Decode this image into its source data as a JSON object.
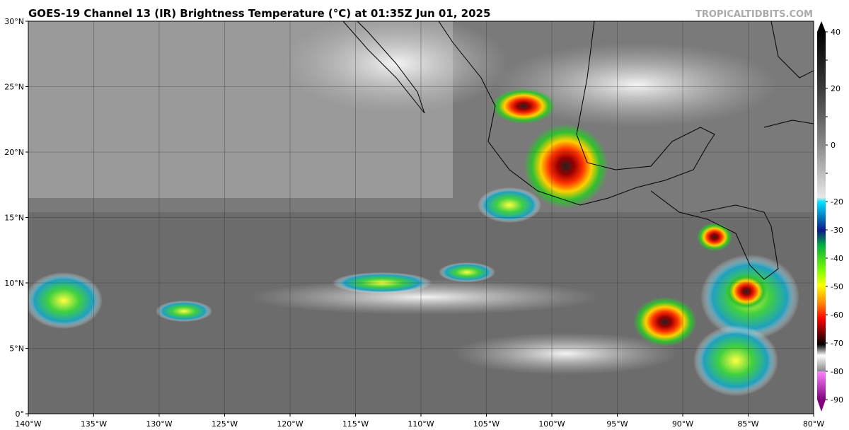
{
  "title": "GOES-19 Channel 13 (IR) Brightness Temperature (°C) at 01:35Z Jun 01, 2025",
  "site": "TROPICALTIDBITS.COM",
  "map": {
    "lat_labels": [
      "0°",
      "5°N",
      "10°N",
      "15°N",
      "20°N",
      "25°N",
      "30°N"
    ],
    "lon_labels": [
      "140°W",
      "135°W",
      "130°W",
      "125°W",
      "120°W",
      "115°W",
      "110°W",
      "105°W",
      "100°W",
      "95°W",
      "90°W",
      "85°W",
      "80°W"
    ]
  },
  "colorbar": {
    "vlim": [
      -90,
      40
    ],
    "ticks": [
      40,
      30,
      20,
      10,
      0,
      -10,
      -20,
      -30,
      -40,
      -50,
      -60,
      -70,
      -80,
      -90
    ],
    "printed": [
      40,
      20,
      0,
      -20,
      -30,
      -40,
      -50,
      -60,
      -70,
      -80,
      -90
    ]
  }
}
